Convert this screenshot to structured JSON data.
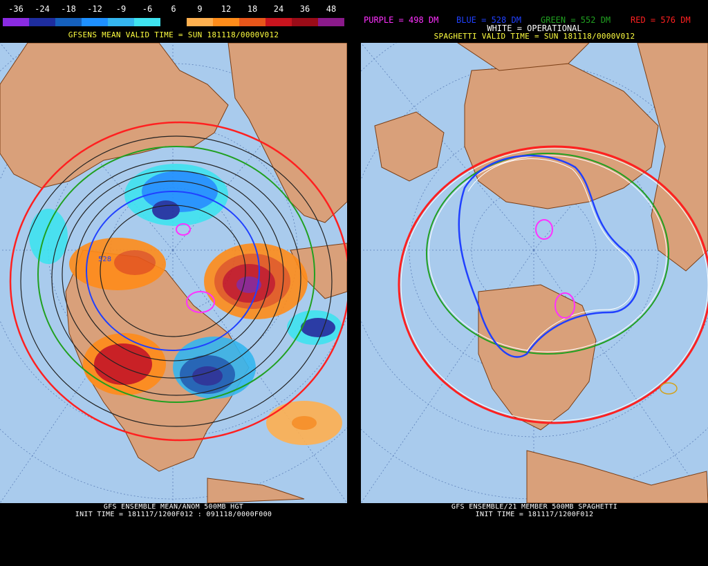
{
  "left_panel": {
    "colorbar": {
      "labels": [
        "-36",
        "-24",
        "-18",
        "-12",
        "-9",
        "-6",
        "6",
        "9",
        "12",
        "18",
        "24",
        "36",
        "48"
      ],
      "colors": [
        "#8a2be2",
        "#1e2d9e",
        "#1560bd",
        "#1e90ff",
        "#35b6ef",
        "#3fe3f0",
        "#000000",
        "#ffb050",
        "#ff8c1a",
        "#e8561a",
        "#c8141e",
        "#9a0c18",
        "#8a1a8a"
      ]
    },
    "valid_time": "GFSENS MEAN VALID TIME = SUN 181118/0000V012",
    "contour_label": "528",
    "footer_line1": "GFS ENSEMBLE MEAN/ANOM 500MB HGT",
    "footer_line2": "INIT TIME = 181117/1200F012 : 091118/0000F000"
  },
  "right_panel": {
    "legend": [
      {
        "text": "PURPLE = 498 DM",
        "color": "#ff30ff"
      },
      {
        "text": "BLUE = 528 DM",
        "color": "#2040ff"
      },
      {
        "text": "GREEN = 552 DM",
        "color": "#20a020"
      },
      {
        "text": "RED = 576 DM",
        "color": "#ff2020"
      }
    ],
    "white_label": "WHITE = OPERATIONAL",
    "valid_time": "SPAGHETTI VALID TIME = SUN 181118/0000V012",
    "footer_line1": "GFS ENSEMBLE/21 MEMBER 500MB SPAGHETTI",
    "footer_line2": "INIT TIME = 181117/1200F012"
  },
  "colors": {
    "ocean": "#a9cbed",
    "land": "#d9a07a",
    "border": "#7a3d14",
    "background": "#000000"
  }
}
